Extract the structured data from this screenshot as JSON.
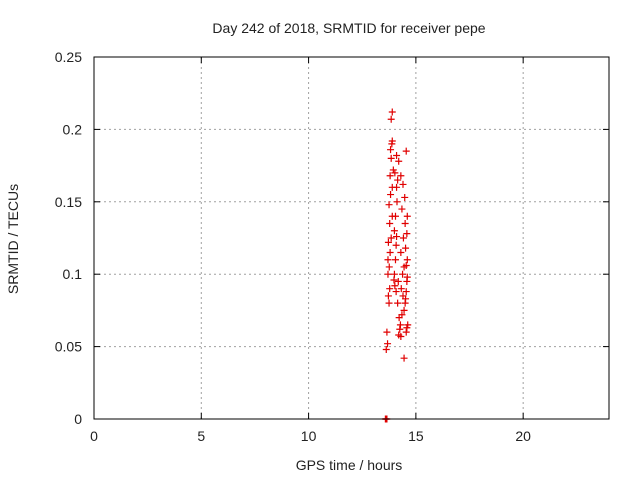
{
  "chart_data": {
    "type": "scatter",
    "title": "Day 242 of 2018, SRMTID for receiver pepe",
    "xlabel": "GPS time / hours",
    "ylabel": "SRMTID / TECUs",
    "xlim": [
      0,
      24
    ],
    "ylim": [
      0,
      0.25
    ],
    "x_ticks": [
      "0",
      "5",
      "10",
      "15",
      "20"
    ],
    "y_ticks": [
      "0",
      "0.05",
      "0.1",
      "0.15",
      "0.2",
      "0.25"
    ],
    "grid": true,
    "marker": "plus",
    "colors": {
      "points": "#e00000",
      "grid": "#a0a0a0",
      "axes": "#000000"
    },
    "series": [
      {
        "points": [
          [
            13.58,
            0.0
          ],
          [
            13.6,
            0.0
          ],
          [
            13.62,
            0.0
          ],
          [
            13.65,
            0.0
          ],
          [
            13.62,
            0.048
          ],
          [
            13.68,
            0.052
          ],
          [
            13.65,
            0.06
          ],
          [
            13.75,
            0.08
          ],
          [
            13.72,
            0.085
          ],
          [
            13.78,
            0.09
          ],
          [
            13.7,
            0.1
          ],
          [
            13.76,
            0.105
          ],
          [
            13.7,
            0.11
          ],
          [
            13.8,
            0.115
          ],
          [
            13.72,
            0.122
          ],
          [
            13.85,
            0.125
          ],
          [
            13.78,
            0.135
          ],
          [
            13.9,
            0.14
          ],
          [
            13.75,
            0.148
          ],
          [
            13.82,
            0.155
          ],
          [
            13.9,
            0.16
          ],
          [
            13.8,
            0.168
          ],
          [
            13.95,
            0.172
          ],
          [
            13.85,
            0.18
          ],
          [
            13.82,
            0.186
          ],
          [
            13.88,
            0.19
          ],
          [
            13.9,
            0.192
          ],
          [
            13.85,
            0.207
          ],
          [
            13.9,
            0.212
          ],
          [
            13.98,
            0.096
          ],
          [
            14.0,
            0.1
          ],
          [
            14.02,
            0.092
          ],
          [
            14.05,
            0.11
          ],
          [
            14.08,
            0.12
          ],
          [
            14.0,
            0.13
          ],
          [
            14.1,
            0.126
          ],
          [
            14.05,
            0.14
          ],
          [
            14.12,
            0.15
          ],
          [
            14.1,
            0.16
          ],
          [
            14.15,
            0.165
          ],
          [
            14.02,
            0.17
          ],
          [
            14.2,
            0.178
          ],
          [
            14.1,
            0.182
          ],
          [
            14.08,
            0.088
          ],
          [
            14.18,
            0.095
          ],
          [
            14.15,
            0.08
          ],
          [
            14.22,
            0.07
          ],
          [
            14.25,
            0.062
          ],
          [
            14.2,
            0.058
          ],
          [
            14.3,
            0.057
          ],
          [
            14.28,
            0.065
          ],
          [
            14.35,
            0.072
          ],
          [
            14.4,
            0.085
          ],
          [
            14.32,
            0.09
          ],
          [
            14.38,
            0.1
          ],
          [
            14.45,
            0.105
          ],
          [
            14.3,
            0.115
          ],
          [
            14.42,
            0.125
          ],
          [
            14.5,
            0.135
          ],
          [
            14.35,
            0.145
          ],
          [
            14.48,
            0.153
          ],
          [
            14.4,
            0.162
          ],
          [
            14.3,
            0.168
          ],
          [
            14.55,
            0.185
          ],
          [
            14.5,
            0.08
          ],
          [
            14.52,
            0.083
          ],
          [
            14.55,
            0.088
          ],
          [
            14.58,
            0.095
          ],
          [
            14.6,
            0.098
          ],
          [
            14.55,
            0.106
          ],
          [
            14.6,
            0.11
          ],
          [
            14.52,
            0.118
          ],
          [
            14.58,
            0.128
          ],
          [
            14.6,
            0.14
          ],
          [
            14.45,
            0.042
          ],
          [
            14.55,
            0.06
          ],
          [
            14.58,
            0.063
          ],
          [
            14.45,
            0.075
          ],
          [
            14.62,
            0.065
          ]
        ]
      }
    ]
  }
}
